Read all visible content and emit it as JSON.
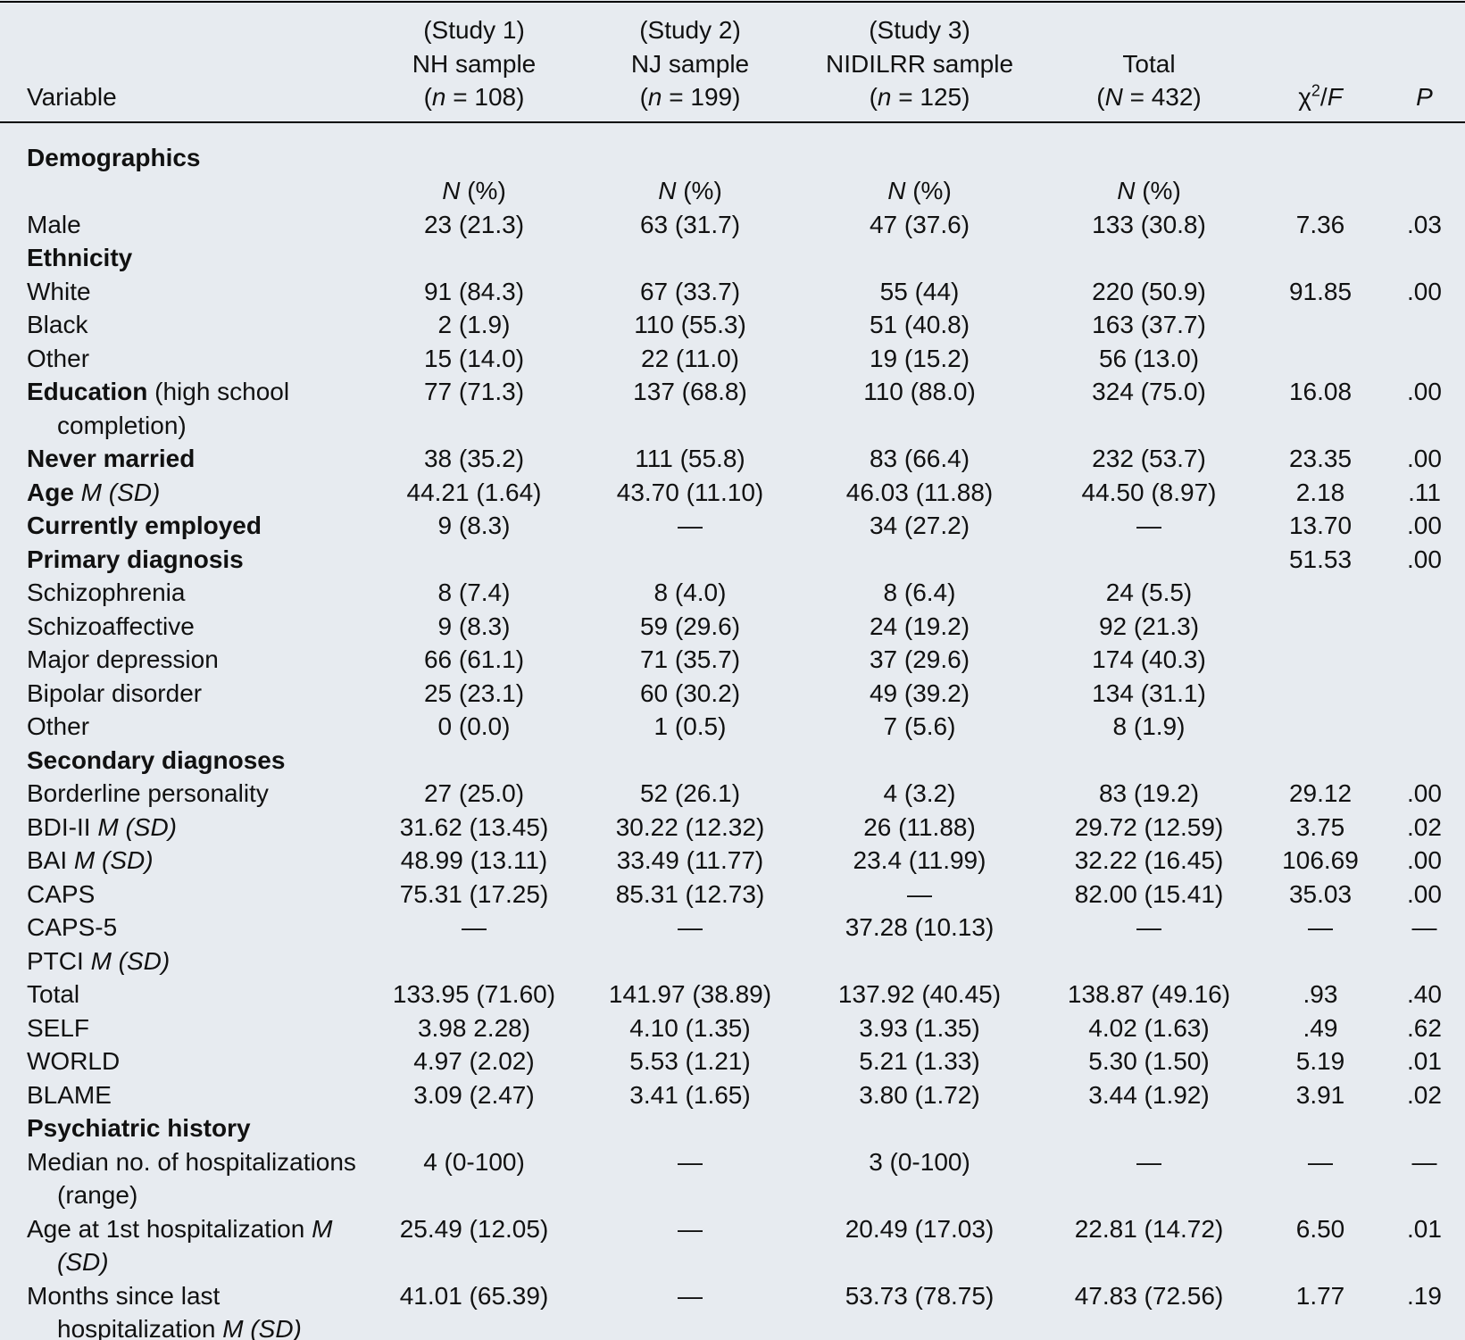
{
  "table": {
    "header": [
      {
        "lines": [
          [
            {
              "text": "Variable",
              "style": "normal"
            }
          ]
        ]
      },
      {
        "lines": [
          [
            {
              "text": "(Study 1)",
              "style": "normal"
            }
          ],
          [
            {
              "text": "NH sample",
              "style": "normal"
            }
          ],
          [
            {
              "text": "(",
              "style": "normal"
            },
            {
              "text": "n",
              "style": "italic"
            },
            {
              "text": " = 108)",
              "style": "normal"
            }
          ]
        ]
      },
      {
        "lines": [
          [
            {
              "text": "(Study 2)",
              "style": "normal"
            }
          ],
          [
            {
              "text": "NJ sample",
              "style": "normal"
            }
          ],
          [
            {
              "text": "(",
              "style": "normal"
            },
            {
              "text": "n",
              "style": "italic"
            },
            {
              "text": " = 199)",
              "style": "normal"
            }
          ]
        ]
      },
      {
        "lines": [
          [
            {
              "text": "(Study 3)",
              "style": "normal"
            }
          ],
          [
            {
              "text": "NIDILRR sample",
              "style": "normal"
            }
          ],
          [
            {
              "text": "(",
              "style": "normal"
            },
            {
              "text": "n",
              "style": "italic"
            },
            {
              "text": " = 125)",
              "style": "normal"
            }
          ]
        ]
      },
      {
        "lines": [
          [
            {
              "text": "Total",
              "style": "normal"
            }
          ],
          [
            {
              "text": "(",
              "style": "normal"
            },
            {
              "text": "N",
              "style": "italic"
            },
            {
              "text": " = 432)",
              "style": "normal"
            }
          ]
        ]
      },
      {
        "lines": [
          [
            {
              "text": "χ",
              "style": "normal"
            },
            {
              "text": "2",
              "style": "sup"
            },
            {
              "text": "/",
              "style": "normal"
            },
            {
              "text": "F",
              "style": "italic"
            }
          ]
        ]
      },
      {
        "lines": [
          [
            {
              "text": "P",
              "style": "italic"
            }
          ]
        ]
      }
    ],
    "rows": [
      {
        "label": [
          {
            "text": "Demographics",
            "style": "bold"
          }
        ],
        "cells": [
          null,
          null,
          null,
          null,
          null,
          null
        ]
      },
      {
        "label": null,
        "cells": [
          [
            {
              "text": "N",
              "style": "italic"
            },
            {
              "text": " (%)",
              "style": "normal"
            }
          ],
          [
            {
              "text": "N",
              "style": "italic"
            },
            {
              "text": " (%)",
              "style": "normal"
            }
          ],
          [
            {
              "text": "N",
              "style": "italic"
            },
            {
              "text": " (%)",
              "style": "normal"
            }
          ],
          [
            {
              "text": "N",
              "style": "italic"
            },
            {
              "text": " (%)",
              "style": "normal"
            }
          ],
          null,
          null
        ]
      },
      {
        "label": [
          {
            "text": "Male",
            "style": "normal"
          }
        ],
        "cells": [
          "23 (21.3)",
          "63 (31.7)",
          "47 (37.6)",
          "133 (30.8)",
          "7.36",
          ".03"
        ]
      },
      {
        "label": [
          {
            "text": "Ethnicity",
            "style": "bold"
          }
        ],
        "cells": [
          null,
          null,
          null,
          null,
          null,
          null
        ]
      },
      {
        "label": [
          {
            "text": "White",
            "style": "normal"
          }
        ],
        "cells": [
          "91 (84.3)",
          "67 (33.7)",
          "55 (44)",
          "220 (50.9)",
          "91.85",
          ".00"
        ]
      },
      {
        "label": [
          {
            "text": "Black",
            "style": "normal"
          }
        ],
        "cells": [
          "2 (1.9)",
          "110 (55.3)",
          "51 (40.8)",
          "163 (37.7)",
          null,
          null
        ]
      },
      {
        "label": [
          {
            "text": "Other",
            "style": "normal"
          }
        ],
        "cells": [
          "15 (14.0)",
          "22 (11.0)",
          "19 (15.2)",
          "56 (13.0)",
          null,
          null
        ]
      },
      {
        "label": [
          {
            "text": "Education",
            "style": "bold"
          },
          {
            "text": " (high school completion)",
            "style": "normal"
          }
        ],
        "cells": [
          "77 (71.3)",
          "137 (68.8)",
          "110 (88.0)",
          "324 (75.0)",
          "16.08",
          ".00"
        ]
      },
      {
        "label": [
          {
            "text": "Never married",
            "style": "bold"
          }
        ],
        "cells": [
          "38 (35.2)",
          "111 (55.8)",
          "83 (66.4)",
          "232 (53.7)",
          "23.35",
          ".00"
        ]
      },
      {
        "label": [
          {
            "text": "Age",
            "style": "bold"
          },
          {
            "text": " M (SD)",
            "style": "italic"
          }
        ],
        "cells": [
          "44.21 (1.64)",
          "43.70 (11.10)",
          "46.03 (11.88)",
          "44.50 (8.97)",
          "2.18",
          ".11"
        ]
      },
      {
        "label": [
          {
            "text": "Currently employed",
            "style": "bold"
          }
        ],
        "cells": [
          "9 (8.3)",
          "—",
          "34 (27.2)",
          "—",
          "13.70",
          ".00"
        ]
      },
      {
        "label": [
          {
            "text": "Primary diagnosis",
            "style": "bold"
          }
        ],
        "cells": [
          null,
          null,
          null,
          null,
          "51.53",
          ".00"
        ]
      },
      {
        "label": [
          {
            "text": "Schizophrenia",
            "style": "normal"
          }
        ],
        "cells": [
          "8 (7.4)",
          "8 (4.0)",
          "8 (6.4)",
          "24 (5.5)",
          null,
          null
        ]
      },
      {
        "label": [
          {
            "text": "Schizoaffective",
            "style": "normal"
          }
        ],
        "cells": [
          "9 (8.3)",
          "59 (29.6)",
          "24 (19.2)",
          "92 (21.3)",
          null,
          null
        ]
      },
      {
        "label": [
          {
            "text": "Major depression",
            "style": "normal"
          }
        ],
        "cells": [
          "66 (61.1)",
          "71 (35.7)",
          "37 (29.6)",
          "174 (40.3)",
          null,
          null
        ]
      },
      {
        "label": [
          {
            "text": "Bipolar disorder",
            "style": "normal"
          }
        ],
        "cells": [
          "25 (23.1)",
          "60 (30.2)",
          "49 (39.2)",
          "134 (31.1)",
          null,
          null
        ]
      },
      {
        "label": [
          {
            "text": "Other",
            "style": "normal"
          }
        ],
        "cells": [
          "0 (0.0)",
          "1 (0.5)",
          "7 (5.6)",
          "8 (1.9)",
          null,
          null
        ]
      },
      {
        "label": [
          {
            "text": "Secondary diagnoses",
            "style": "bold"
          }
        ],
        "cells": [
          null,
          null,
          null,
          null,
          null,
          null
        ]
      },
      {
        "label": [
          {
            "text": "Borderline personality",
            "style": "normal"
          }
        ],
        "cells": [
          "27 (25.0)",
          "52 (26.1)",
          "4 (3.2)",
          "83 (19.2)",
          "29.12",
          ".00"
        ]
      },
      {
        "label": [
          {
            "text": "BDI-II ",
            "style": "normal"
          },
          {
            "text": "M (SD)",
            "style": "italic"
          }
        ],
        "cells": [
          "31.62 (13.45)",
          "30.22 (12.32)",
          "26 (11.88)",
          "29.72 (12.59)",
          "3.75",
          ".02"
        ]
      },
      {
        "label": [
          {
            "text": "BAI ",
            "style": "normal"
          },
          {
            "text": "M (SD)",
            "style": "italic"
          }
        ],
        "cells": [
          "48.99 (13.11)",
          "33.49 (11.77)",
          "23.4 (11.99)",
          "32.22 (16.45)",
          "106.69",
          ".00"
        ]
      },
      {
        "label": [
          {
            "text": "CAPS",
            "style": "normal"
          }
        ],
        "cells": [
          "75.31 (17.25)",
          "85.31 (12.73)",
          "—",
          "82.00 (15.41)",
          "35.03",
          ".00"
        ]
      },
      {
        "label": [
          {
            "text": "CAPS-5",
            "style": "normal"
          }
        ],
        "cells": [
          "—",
          "—",
          "37.28 (10.13)",
          "—",
          "—",
          "—"
        ]
      },
      {
        "label": [
          {
            "text": "PTCI ",
            "style": "normal"
          },
          {
            "text": "M (SD)",
            "style": "italic"
          }
        ],
        "cells": [
          null,
          null,
          null,
          null,
          null,
          null
        ]
      },
      {
        "label": [
          {
            "text": "Total",
            "style": "normal"
          }
        ],
        "cells": [
          "133.95 (71.60)",
          "141.97 (38.89)",
          "137.92 (40.45)",
          "138.87 (49.16)",
          ".93",
          ".40"
        ]
      },
      {
        "label": [
          {
            "text": "SELF",
            "style": "normal"
          }
        ],
        "cells": [
          "3.98 2.28)",
          "4.10 (1.35)",
          "3.93 (1.35)",
          "4.02 (1.63)",
          ".49",
          ".62"
        ]
      },
      {
        "label": [
          {
            "text": "WORLD",
            "style": "normal"
          }
        ],
        "cells": [
          "4.97 (2.02)",
          "5.53 (1.21)",
          "5.21 (1.33)",
          "5.30 (1.50)",
          "5.19",
          ".01"
        ]
      },
      {
        "label": [
          {
            "text": "BLAME",
            "style": "normal"
          }
        ],
        "cells": [
          "3.09 (2.47)",
          "3.41 (1.65)",
          "3.80 (1.72)",
          "3.44 (1.92)",
          "3.91",
          ".02"
        ]
      },
      {
        "label": [
          {
            "text": "Psychiatric history",
            "style": "bold"
          }
        ],
        "cells": [
          null,
          null,
          null,
          null,
          null,
          null
        ]
      },
      {
        "label": [
          {
            "text": "Median no. of hospitalizations (range)",
            "style": "normal"
          }
        ],
        "cells": [
          "4 (0-100)",
          "—",
          "3 (0-100)",
          "—",
          "—",
          "—"
        ]
      },
      {
        "label": [
          {
            "text": "Age at 1st hospitalization ",
            "style": "normal"
          },
          {
            "text": "M (SD)",
            "style": "italic"
          }
        ],
        "cells": [
          "25.49 (12.05)",
          "—",
          "20.49 (17.03)",
          "22.81 (14.72)",
          "6.50",
          ".01"
        ]
      },
      {
        "label": [
          {
            "text": "Months since last hospitalization ",
            "style": "normal"
          },
          {
            "text": "M (SD)",
            "style": "italic"
          }
        ],
        "cells": [
          "41.01 (65.39)",
          "—",
          "53.73 (78.75)",
          "47.83 (72.56)",
          "1.77",
          ".19"
        ]
      }
    ]
  }
}
